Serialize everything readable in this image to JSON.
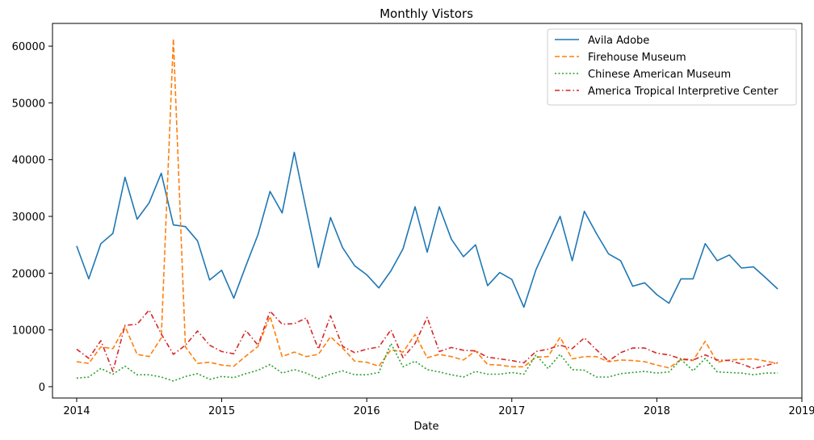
{
  "chart_data": {
    "type": "line",
    "title": "Monthly Vistors",
    "xlabel": "Date",
    "ylabel": "",
    "x": [
      "2014-01",
      "2014-02",
      "2014-03",
      "2014-04",
      "2014-05",
      "2014-06",
      "2014-07",
      "2014-08",
      "2014-09",
      "2014-10",
      "2014-11",
      "2014-12",
      "2015-01",
      "2015-02",
      "2015-03",
      "2015-04",
      "2015-05",
      "2015-06",
      "2015-07",
      "2015-08",
      "2015-09",
      "2015-10",
      "2015-11",
      "2015-12",
      "2016-01",
      "2016-02",
      "2016-03",
      "2016-04",
      "2016-05",
      "2016-06",
      "2016-07",
      "2016-08",
      "2016-09",
      "2016-10",
      "2016-11",
      "2016-12",
      "2017-01",
      "2017-02",
      "2017-03",
      "2017-04",
      "2017-05",
      "2017-06",
      "2017-07",
      "2017-08",
      "2017-09",
      "2017-10",
      "2017-11",
      "2017-12",
      "2018-01",
      "2018-02",
      "2018-03",
      "2018-04",
      "2018-05",
      "2018-06",
      "2018-07",
      "2018-08",
      "2018-09",
      "2018-10",
      "2018-11"
    ],
    "xticks": [
      "2014",
      "2015",
      "2016",
      "2017",
      "2018",
      "2019"
    ],
    "xlim": [
      "2013-11",
      "2019-01"
    ],
    "ylim": [
      -2000,
      64000
    ],
    "yticks": [
      0,
      10000,
      20000,
      30000,
      40000,
      50000,
      60000
    ],
    "grid": false,
    "legend_position": "top-right",
    "series": [
      {
        "name": "Avila Adobe",
        "color": "#1f77b4",
        "dash": "solid",
        "values": [
          24800,
          19000,
          25200,
          27000,
          36900,
          29500,
          32400,
          37600,
          28500,
          28200,
          25700,
          18800,
          20500,
          15600,
          21300,
          26800,
          34400,
          30600,
          41300,
          31100,
          21000,
          29800,
          24500,
          21300,
          19700,
          17400,
          20400,
          24300,
          31700,
          23700,
          31700,
          26000,
          22900,
          25000,
          17800,
          20100,
          18900,
          14000,
          20600,
          25300,
          30000,
          22200,
          30900,
          27000,
          23400,
          22200,
          17700,
          18300,
          16200,
          14700,
          19000,
          19000,
          25200,
          22200,
          23200,
          20900,
          21100,
          19200,
          17200
        ]
      },
      {
        "name": "Firehouse Museum",
        "color": "#ff7f0e",
        "dash": "dashed",
        "values": [
          4400,
          4100,
          7000,
          6700,
          10600,
          5700,
          5300,
          8600,
          61300,
          7000,
          4100,
          4300,
          3800,
          3600,
          5400,
          7100,
          12400,
          5300,
          6100,
          5300,
          5700,
          8800,
          6800,
          4500,
          4300,
          3600,
          6500,
          6100,
          9200,
          5100,
          5700,
          5300,
          4700,
          6300,
          3900,
          3800,
          3500,
          3500,
          5200,
          5300,
          8700,
          4900,
          5300,
          5300,
          4400,
          4700,
          4600,
          4400,
          3800,
          3300,
          4800,
          4600,
          8000,
          4300,
          4700,
          4800,
          4900,
          4500,
          4100
        ]
      },
      {
        "name": "Chinese American Museum",
        "color": "#2ca02c",
        "dash": "dotted",
        "values": [
          1500,
          1700,
          3200,
          2200,
          3600,
          2100,
          2100,
          1700,
          1000,
          1800,
          2300,
          1300,
          1800,
          1600,
          2300,
          2900,
          3900,
          2400,
          3000,
          2400,
          1400,
          2200,
          2800,
          2100,
          2100,
          2500,
          7600,
          3500,
          4500,
          3000,
          2600,
          2100,
          1700,
          2700,
          2200,
          2200,
          2500,
          2200,
          5600,
          3200,
          5700,
          3000,
          2900,
          1700,
          1700,
          2300,
          2500,
          2700,
          2400,
          2600,
          4800,
          2800,
          5000,
          2600,
          2500,
          2400,
          2100,
          2400,
          2400
        ]
      },
      {
        "name": "America Tropical Interpretive Center",
        "color": "#d62728",
        "dash": "dashdot",
        "values": [
          6600,
          5000,
          8100,
          2700,
          10800,
          11000,
          13500,
          9300,
          5700,
          7300,
          9800,
          7300,
          6200,
          5800,
          9900,
          7300,
          13300,
          11000,
          11100,
          12100,
          6600,
          12500,
          7100,
          6000,
          6600,
          7000,
          10000,
          5100,
          7600,
          12200,
          6200,
          6900,
          6400,
          6300,
          5200,
          4900,
          4600,
          4200,
          6200,
          6600,
          7300,
          6700,
          8600,
          6500,
          4500,
          6000,
          6800,
          6800,
          5900,
          5600,
          4900,
          4700,
          5600,
          4700,
          4600,
          4000,
          3200,
          3700,
          4300
        ]
      }
    ]
  }
}
